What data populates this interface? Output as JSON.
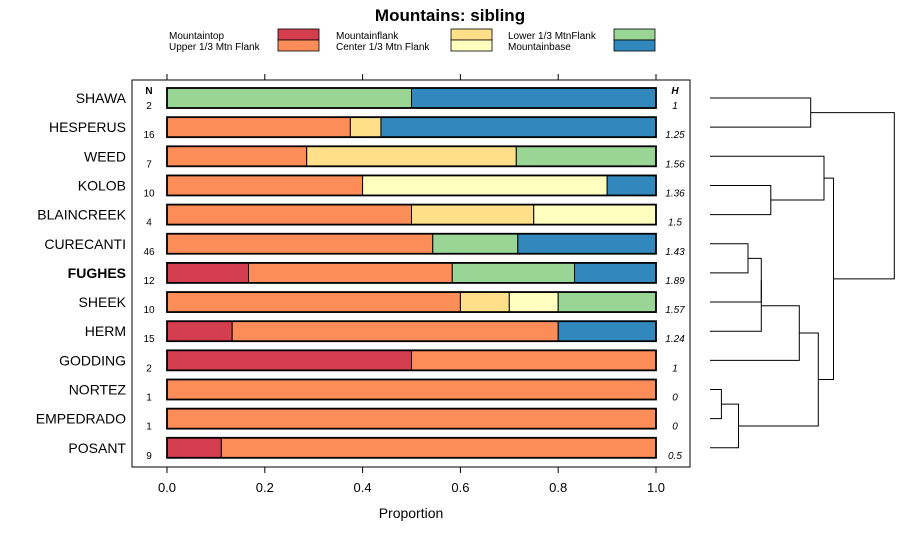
{
  "chart_data": {
    "type": "bar",
    "orientation": "horizontal",
    "stacked": true,
    "title": "Mountains: sibling",
    "xlabel": "Proportion",
    "xlim": [
      0,
      1
    ],
    "xticks": [
      "0.0",
      "0.2",
      "0.4",
      "0.6",
      "0.8",
      "1.0"
    ],
    "n_header": "N",
    "h_header": "H",
    "legend": [
      {
        "name": "Mountaintop",
        "color": "#d53e4f"
      },
      {
        "name": "Upper 1/3 Mtn Flank",
        "color": "#fc8d59"
      },
      {
        "name": "Mountainflank",
        "color": "#fee08b"
      },
      {
        "name": "Center 1/3 Mtn Flank",
        "color": "#ffffbf"
      },
      {
        "name": "Lower 1/3 MtnFlank",
        "color": "#99d594"
      },
      {
        "name": "Mountainbase",
        "color": "#3288bd"
      }
    ],
    "rows": [
      {
        "name": "SHAWA",
        "bold": false,
        "n": "2",
        "h": "1",
        "values": [
          0,
          0,
          0,
          0,
          0.5,
          0.5
        ]
      },
      {
        "name": "HESPERUS",
        "bold": false,
        "n": "16",
        "h": "1.25",
        "values": [
          0,
          0.375,
          0.0625,
          0,
          0,
          0.5625
        ]
      },
      {
        "name": "WEED",
        "bold": false,
        "n": "7",
        "h": "1.56",
        "values": [
          0,
          0.2857,
          0.4286,
          0,
          0.2857,
          0
        ]
      },
      {
        "name": "KOLOB",
        "bold": false,
        "n": "10",
        "h": "1.36",
        "values": [
          0,
          0.4,
          0,
          0.5,
          0,
          0.1
        ]
      },
      {
        "name": "BLAINCREEK",
        "bold": false,
        "n": "4",
        "h": "1.5",
        "values": [
          0,
          0.5,
          0.25,
          0.25,
          0,
          0
        ]
      },
      {
        "name": "CURECANTI",
        "bold": false,
        "n": "46",
        "h": "1.43",
        "values": [
          0,
          0.5435,
          0,
          0,
          0.1739,
          0.2826
        ]
      },
      {
        "name": "FUGHES",
        "bold": true,
        "n": "12",
        "h": "1.89",
        "values": [
          0.1667,
          0.4167,
          0,
          0,
          0.25,
          0.1667
        ]
      },
      {
        "name": "SHEEK",
        "bold": false,
        "n": "10",
        "h": "1.57",
        "values": [
          0,
          0.6,
          0.1,
          0.1,
          0.2,
          0
        ]
      },
      {
        "name": "HERM",
        "bold": false,
        "n": "15",
        "h": "1.24",
        "values": [
          0.1333,
          0.6667,
          0,
          0,
          0,
          0.2
        ]
      },
      {
        "name": "GODDING",
        "bold": false,
        "n": "2",
        "h": "1",
        "values": [
          0.5,
          0.5,
          0,
          0,
          0,
          0
        ]
      },
      {
        "name": "NORTEZ",
        "bold": false,
        "n": "1",
        "h": "0",
        "values": [
          0,
          1,
          0,
          0,
          0,
          0
        ]
      },
      {
        "name": "EMPEDRADO",
        "bold": false,
        "n": "1",
        "h": "0",
        "values": [
          0,
          1,
          0,
          0,
          0,
          0
        ]
      },
      {
        "name": "POSANT",
        "bold": false,
        "n": "9",
        "h": "0.5",
        "values": [
          0.1111,
          0.8889,
          0,
          0,
          0,
          0
        ]
      }
    ],
    "dendrogram": {
      "leaf_order": [
        "SHAWA",
        "HESPERUS",
        "WEED",
        "KOLOB",
        "BLAINCREEK",
        "CURECANTI",
        "FUGHES",
        "SHEEK",
        "HERM",
        "GODDING",
        "NORTEZ",
        "EMPEDRADO",
        "POSANT"
      ],
      "merges": [
        [
          "SHAWA",
          "HESPERUS",
          0.53
        ],
        [
          "KOLOB",
          "BLAINCREEK",
          0.32
        ],
        [
          "WEED",
          1,
          0.6
        ],
        [
          "CURECANTI",
          "FUGHES",
          0.2
        ],
        [
          3,
          "SHEEK",
          0.27
        ],
        [
          4,
          "HERM",
          0.27
        ],
        [
          5,
          "GODDING",
          0.47
        ],
        [
          "NORTEZ",
          "EMPEDRADO",
          0.06
        ],
        [
          7,
          "POSANT",
          0.15
        ],
        [
          6,
          8,
          0.57
        ],
        [
          2,
          9,
          0.65
        ],
        [
          0,
          10,
          0.97
        ]
      ]
    }
  }
}
